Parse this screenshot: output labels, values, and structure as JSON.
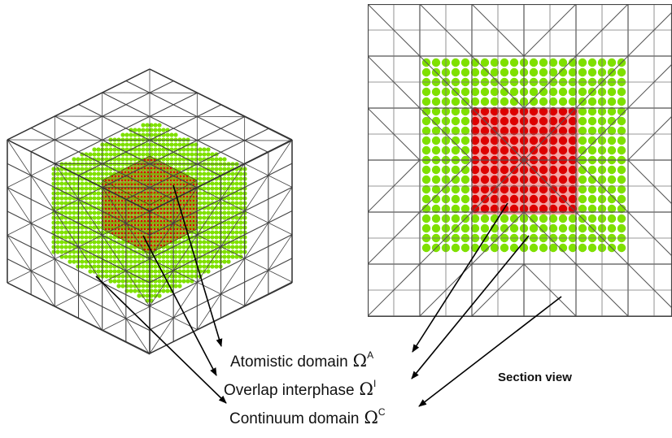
{
  "labels": {
    "atomistic": {
      "text": "Atomistic domain",
      "symbol": "Ω",
      "sup": "A"
    },
    "overlap": {
      "text": "Overlap interphase",
      "symbol": "Ω",
      "sup": "I"
    },
    "continuum": {
      "text": "Continuum domain",
      "symbol": "Ω",
      "sup": "C"
    },
    "section_view": "Section view"
  },
  "colors": {
    "atom_inner": "#dd0000",
    "atom_overlap": "#7fe000",
    "mesh": "#444444",
    "arrow": "#000000"
  }
}
